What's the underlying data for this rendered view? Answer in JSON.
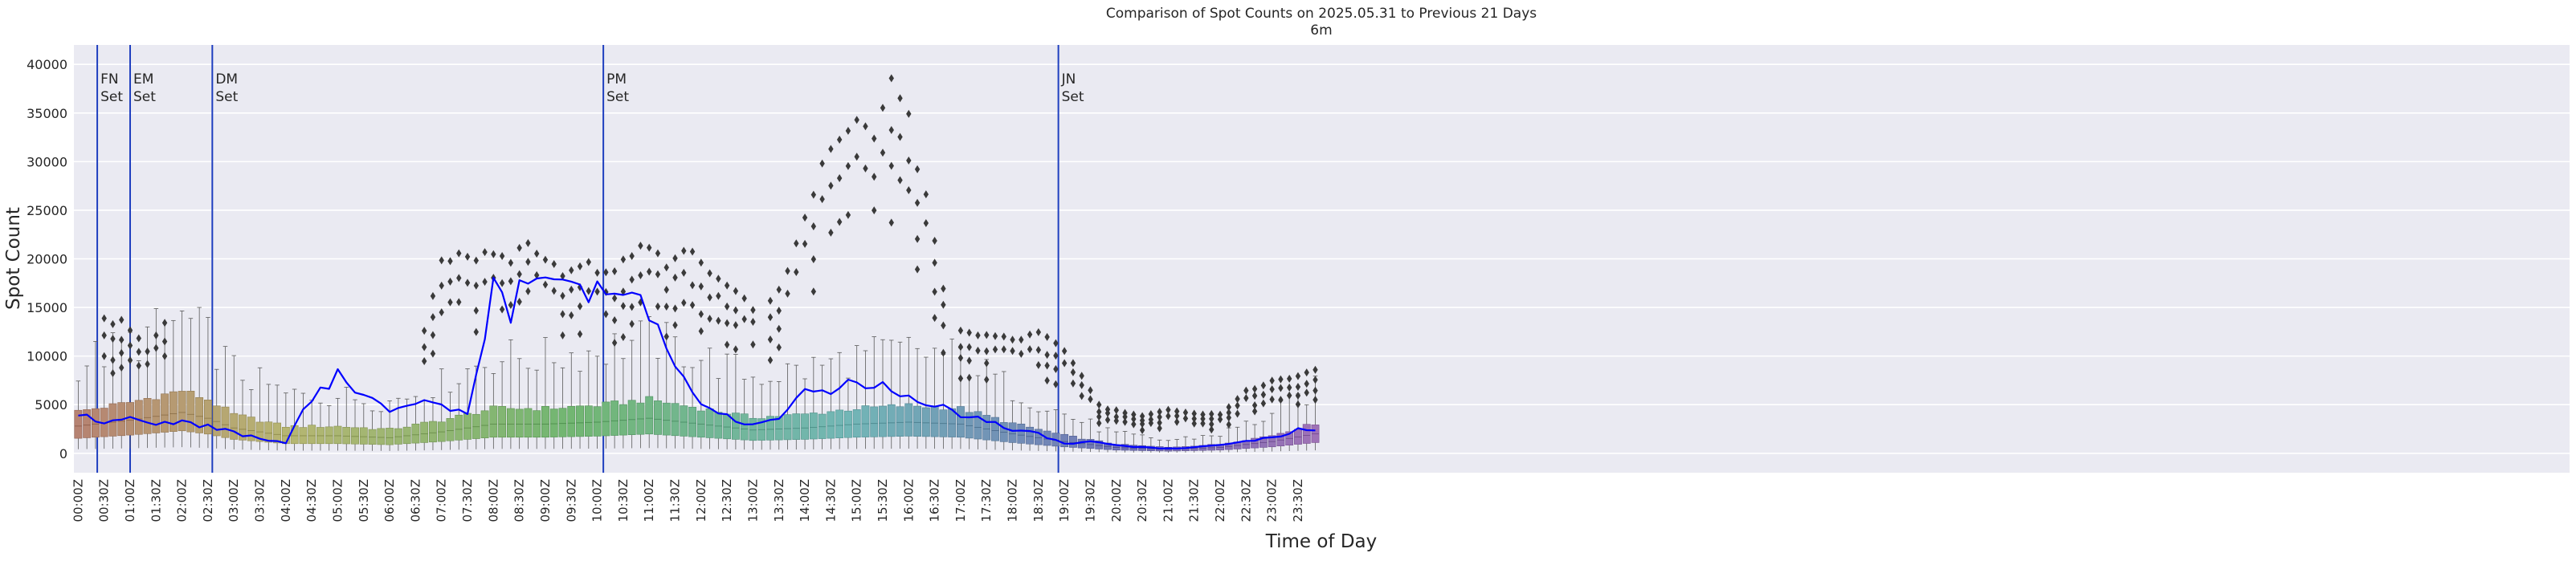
{
  "chart_data": {
    "type": "box",
    "title": "Comparison of Spot Counts on 2025.05.31 to Previous 21 Days",
    "subtitle": "6m",
    "xlabel": "Time of Day",
    "ylabel": "Spot Count",
    "ylim": [
      -2000,
      42000
    ],
    "yticks": [
      0,
      5000,
      10000,
      15000,
      20000,
      25000,
      30000,
      35000,
      40000
    ],
    "grid": true,
    "bin_minutes": 10,
    "x_tick_labels": [
      "00:00Z",
      "00:30Z",
      "01:00Z",
      "01:30Z",
      "02:00Z",
      "02:30Z",
      "03:00Z",
      "03:30Z",
      "04:00Z",
      "04:30Z",
      "05:00Z",
      "05:30Z",
      "06:00Z",
      "06:30Z",
      "07:00Z",
      "07:30Z",
      "08:00Z",
      "08:30Z",
      "09:00Z",
      "09:30Z",
      "10:00Z",
      "10:30Z",
      "11:00Z",
      "11:30Z",
      "12:00Z",
      "12:30Z",
      "13:00Z",
      "13:30Z",
      "14:00Z",
      "14:30Z",
      "15:00Z",
      "15:30Z",
      "16:00Z",
      "16:30Z",
      "17:00Z",
      "17:30Z",
      "18:00Z",
      "18:30Z",
      "19:00Z",
      "19:30Z",
      "20:00Z",
      "20:30Z",
      "21:00Z",
      "21:30Z",
      "22:00Z",
      "22:30Z",
      "23:00Z",
      "23:30Z"
    ],
    "annotations": [
      {
        "time": "00:22Z",
        "lines": [
          "FN",
          "Set"
        ]
      },
      {
        "time": "01:00Z",
        "lines": [
          "EM",
          "Set"
        ]
      },
      {
        "time": "02:35Z",
        "lines": [
          "DM",
          "Set"
        ]
      },
      {
        "time": "10:07Z",
        "lines": [
          "PM",
          "Set"
        ]
      },
      {
        "time": "18:53Z",
        "lines": [
          "JN",
          "Set"
        ]
      }
    ],
    "current_day_series": {
      "color": "#0000ff",
      "points": [
        [
          "00:00Z",
          4000
        ],
        [
          "00:30Z",
          3200
        ],
        [
          "01:00Z",
          3500
        ],
        [
          "01:30Z",
          3000
        ],
        [
          "02:00Z",
          3100
        ],
        [
          "02:30Z",
          2800
        ],
        [
          "03:00Z",
          2100
        ],
        [
          "03:30Z",
          1500
        ],
        [
          "04:00Z",
          1000
        ],
        [
          "04:30Z",
          5800
        ],
        [
          "05:00Z",
          8000
        ],
        [
          "05:30Z",
          6200
        ],
        [
          "06:00Z",
          4200
        ],
        [
          "06:30Z",
          5500
        ],
        [
          "07:00Z",
          5000
        ],
        [
          "07:30Z",
          4300
        ],
        [
          "07:50Z",
          11000
        ],
        [
          "08:00Z",
          17000
        ],
        [
          "08:20Z",
          14000
        ],
        [
          "08:30Z",
          19500
        ],
        [
          "09:00Z",
          17500
        ],
        [
          "09:30Z",
          18200
        ],
        [
          "10:00Z",
          16500
        ],
        [
          "10:30Z",
          15500
        ],
        [
          "11:00Z",
          15000
        ],
        [
          "11:30Z",
          9000
        ],
        [
          "12:00Z",
          5200
        ],
        [
          "12:30Z",
          3800
        ],
        [
          "13:00Z",
          2800
        ],
        [
          "13:30Z",
          3600
        ],
        [
          "14:00Z",
          6500
        ],
        [
          "14:30Z",
          6000
        ],
        [
          "15:00Z",
          7500
        ],
        [
          "15:30Z",
          6800
        ],
        [
          "16:00Z",
          5500
        ],
        [
          "16:30Z",
          5000
        ],
        [
          "17:00Z",
          4000
        ],
        [
          "17:30Z",
          3400
        ],
        [
          "18:00Z",
          2400
        ],
        [
          "18:30Z",
          2000
        ],
        [
          "19:00Z",
          1000
        ],
        [
          "19:30Z",
          1200
        ],
        [
          "20:00Z",
          800
        ],
        [
          "20:30Z",
          600
        ],
        [
          "21:00Z",
          500
        ],
        [
          "21:30Z",
          600
        ],
        [
          "22:00Z",
          800
        ],
        [
          "22:30Z",
          1200
        ],
        [
          "23:00Z",
          1600
        ],
        [
          "23:30Z",
          2400
        ],
        [
          "23:50Z",
          2200
        ]
      ]
    },
    "box_median_profile": [
      [
        "00:00Z",
        2800
      ],
      [
        "01:00Z",
        3400
      ],
      [
        "02:00Z",
        4200
      ],
      [
        "02:30Z",
        3600
      ],
      [
        "03:00Z",
        2600
      ],
      [
        "04:00Z",
        1800
      ],
      [
        "05:00Z",
        1800
      ],
      [
        "06:00Z",
        1600
      ],
      [
        "07:00Z",
        2200
      ],
      [
        "08:00Z",
        3000
      ],
      [
        "09:00Z",
        3000
      ],
      [
        "10:00Z",
        3200
      ],
      [
        "11:00Z",
        3600
      ],
      [
        "12:00Z",
        3000
      ],
      [
        "13:00Z",
        2400
      ],
      [
        "14:00Z",
        2600
      ],
      [
        "15:00Z",
        3000
      ],
      [
        "16:00Z",
        3200
      ],
      [
        "17:00Z",
        3000
      ],
      [
        "18:00Z",
        2000
      ],
      [
        "19:00Z",
        1200
      ],
      [
        "20:00Z",
        600
      ],
      [
        "21:00Z",
        400
      ],
      [
        "22:00Z",
        600
      ],
      [
        "23:00Z",
        1200
      ],
      [
        "23:50Z",
        2000
      ]
    ],
    "outlier_ridges": [
      {
        "times": [
          "00:30Z",
          "00:40Z",
          "00:50Z",
          "01:00Z",
          "01:20Z",
          "01:40Z"
        ],
        "values": [
          14000,
          13500,
          14000,
          12800,
          11000,
          13800
        ]
      },
      {
        "times": [
          "06:40Z",
          "07:00Z",
          "07:20Z",
          "07:40Z",
          "08:00Z",
          "08:20Z",
          "08:40Z",
          "09:00Z",
          "09:20Z",
          "09:40Z",
          "10:00Z",
          "10:20Z",
          "10:40Z",
          "11:00Z",
          "11:20Z",
          "11:40Z",
          "12:00Z",
          "12:20Z",
          "12:40Z",
          "13:00Z"
        ],
        "values": [
          13000,
          20000,
          21000,
          20500,
          21000,
          20500,
          22500,
          20000,
          19000,
          20000,
          19500,
          19000,
          21000,
          22000,
          20000,
          21500,
          20000,
          18500,
          17500,
          15500
        ]
      },
      {
        "times": [
          "13:20Z",
          "13:40Z",
          "14:00Z",
          "14:20Z",
          "14:40Z",
          "15:00Z",
          "15:20Z",
          "15:40Z",
          "15:50Z",
          "16:00Z",
          "16:10Z",
          "16:20Z",
          "16:40Z"
        ],
        "values": [
          16000,
          19000,
          25000,
          30000,
          33000,
          35500,
          34000,
          39500,
          38000,
          36000,
          30000,
          27500,
          17500
        ]
      },
      {
        "times": [
          "17:00Z",
          "17:30Z",
          "18:00Z",
          "18:30Z",
          "19:00Z",
          "19:20Z",
          "19:40Z",
          "20:00Z",
          "20:30Z",
          "21:00Z",
          "21:30Z",
          "22:00Z",
          "22:30Z",
          "23:00Z",
          "23:30Z",
          "23:50Z"
        ],
        "values": [
          13000,
          12500,
          12000,
          12500,
          11000,
          8000,
          5000,
          4500,
          4000,
          4500,
          4200,
          4000,
          6500,
          7500,
          8000,
          9000
        ]
      }
    ]
  },
  "colors": {
    "plot_background": "#eaeaf2",
    "gridline": "#ffffff",
    "annotation_line": "#1f3fbf",
    "current_day_line": "#0000ff",
    "outlier": "#3a3a3a",
    "whisker": "#5a5a5a"
  }
}
